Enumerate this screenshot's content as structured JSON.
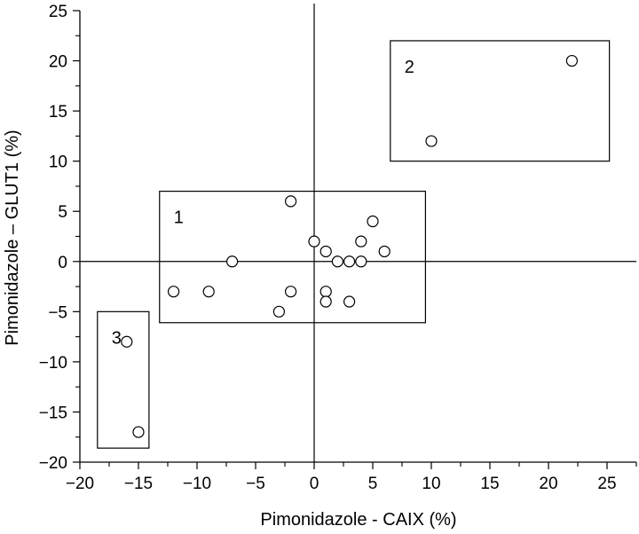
{
  "chart_data": {
    "type": "scatter",
    "title": "",
    "xlabel": "Pimonidazole - CAIX (%)",
    "ylabel": "Pimonidazole – GLUT1 (%)",
    "xlim": [
      -20,
      27.5
    ],
    "ylim": [
      -20,
      25
    ],
    "x_ticks": [
      -20,
      -15,
      -10,
      -5,
      0,
      5,
      10,
      15,
      20,
      25
    ],
    "x_tick_labels": [
      "−20",
      "−15",
      "−10",
      "−5",
      "0",
      "5",
      "10",
      "15",
      "20",
      "25"
    ],
    "y_ticks": [
      -20,
      -15,
      -10,
      -5,
      0,
      5,
      10,
      15,
      20,
      25
    ],
    "y_tick_labels": [
      "−20",
      "−15",
      "−10",
      "−5",
      "0",
      "5",
      "10",
      "15",
      "20",
      "25"
    ],
    "grid": false,
    "zero_lines": true,
    "marker": "open-circle",
    "series": [
      {
        "points": [
          {
            "x": 22,
            "y": 20
          },
          {
            "x": 10,
            "y": 12
          },
          {
            "x": -2,
            "y": 6
          },
          {
            "x": 5,
            "y": 4
          },
          {
            "x": 0,
            "y": 2
          },
          {
            "x": 4,
            "y": 2
          },
          {
            "x": 1,
            "y": 1
          },
          {
            "x": 6,
            "y": 1
          },
          {
            "x": -7,
            "y": 0
          },
          {
            "x": 2,
            "y": 0
          },
          {
            "x": 3,
            "y": 0
          },
          {
            "x": 4,
            "y": 0
          },
          {
            "x": -12,
            "y": -3
          },
          {
            "x": -9,
            "y": -3
          },
          {
            "x": -2,
            "y": -3
          },
          {
            "x": 1,
            "y": -3
          },
          {
            "x": 1,
            "y": -4
          },
          {
            "x": 3,
            "y": -4
          },
          {
            "x": -3,
            "y": -5
          },
          {
            "x": -16,
            "y": -8
          },
          {
            "x": -15,
            "y": -17
          }
        ]
      }
    ],
    "groups": [
      {
        "label": "1",
        "x_range": [
          -13.2,
          9.5
        ],
        "y_range": [
          -6.1,
          7
        ]
      },
      {
        "label": "2",
        "x_range": [
          6.5,
          25.2
        ],
        "y_range": [
          10,
          22
        ]
      },
      {
        "label": "3",
        "x_range": [
          -18.5,
          -14.1
        ],
        "y_range": [
          -18.6,
          -5
        ]
      }
    ]
  }
}
